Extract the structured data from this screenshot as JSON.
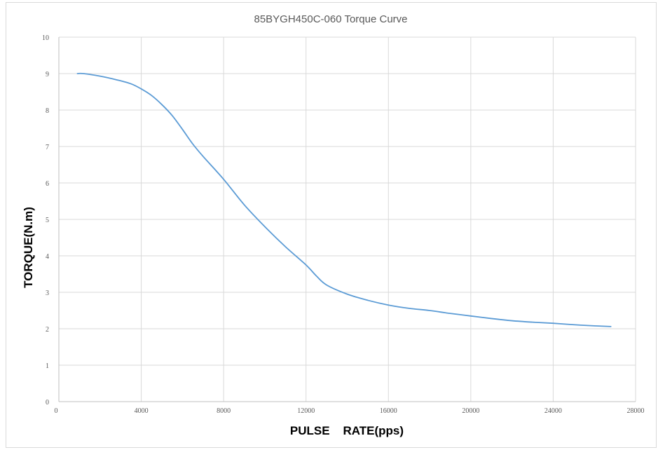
{
  "chart_data": {
    "type": "line",
    "title": "85BYGH450C-060  Torque Curve",
    "xlabel": "PULSE    RATE(pps)",
    "ylabel": "TORQUE(N.m)",
    "xlim": [
      0,
      28000
    ],
    "ylim": [
      0,
      10
    ],
    "x_ticks": [
      0,
      4000,
      8000,
      12000,
      16000,
      20000,
      24000,
      28000
    ],
    "y_ticks": [
      0,
      1,
      2,
      3,
      4,
      5,
      6,
      7,
      8,
      9,
      10
    ],
    "grid": "vertical and horizontal",
    "legend": "none",
    "series": [
      {
        "color": "#5b9bd5",
        "x": [
          900,
          1200,
          2000,
          2800,
          3500,
          4000,
          4500,
          5000,
          5500,
          6000,
          6500,
          7000,
          8000,
          9000,
          10000,
          11000,
          12000,
          12500,
          13000,
          14000,
          15000,
          16000,
          17000,
          18000,
          19000,
          20000,
          21000,
          22000,
          23000,
          24000,
          25000,
          26000,
          26800
        ],
        "values": [
          9.0,
          9.0,
          8.93,
          8.83,
          8.72,
          8.58,
          8.4,
          8.15,
          7.85,
          7.47,
          7.07,
          6.73,
          6.1,
          5.4,
          4.8,
          4.25,
          3.75,
          3.45,
          3.2,
          2.95,
          2.78,
          2.65,
          2.56,
          2.5,
          2.42,
          2.35,
          2.28,
          2.22,
          2.18,
          2.15,
          2.11,
          2.08,
          2.06
        ]
      }
    ]
  }
}
